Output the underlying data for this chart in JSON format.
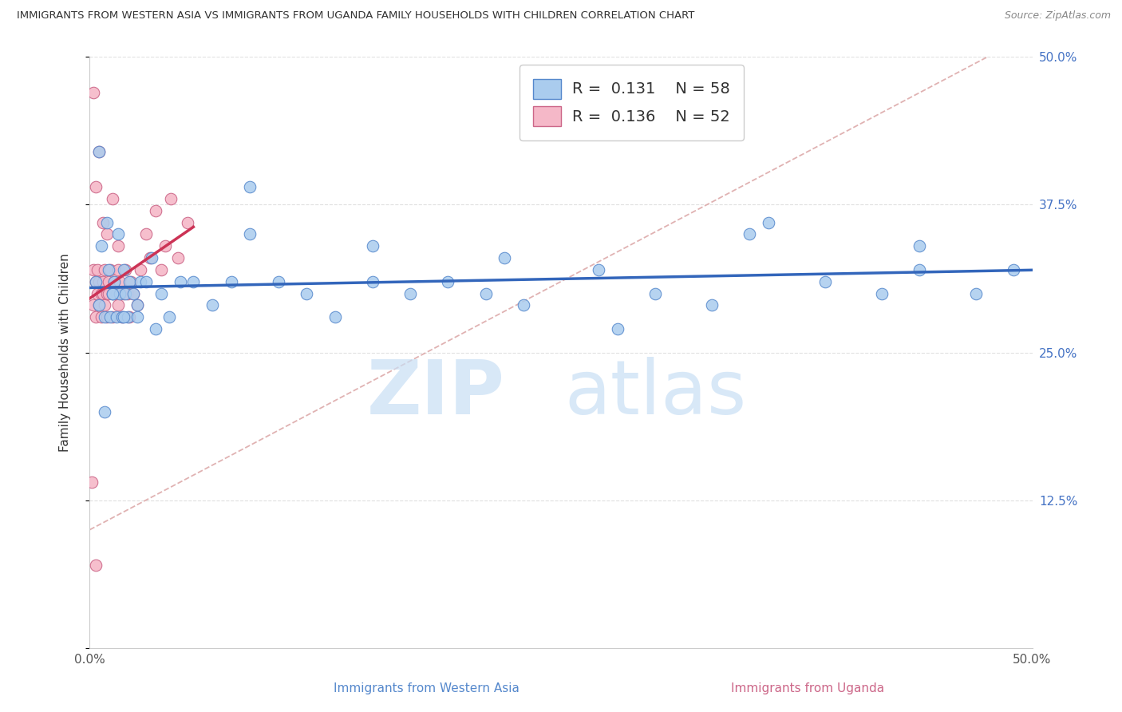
{
  "title": "IMMIGRANTS FROM WESTERN ASIA VS IMMIGRANTS FROM UGANDA FAMILY HOUSEHOLDS WITH CHILDREN CORRELATION CHART",
  "source": "Source: ZipAtlas.com",
  "xlabel_blue": "Immigrants from Western Asia",
  "xlabel_pink": "Immigrants from Uganda",
  "ylabel": "Family Households with Children",
  "legend_label1": "R =  0.131    N = 58",
  "legend_label2": "R =  0.136    N = 52",
  "blue_dot_color": "#aaccee",
  "blue_edge_color": "#5588cc",
  "pink_dot_color": "#f5b8c8",
  "pink_edge_color": "#cc6688",
  "trend_blue_color": "#3366bb",
  "trend_pink_color": "#cc3355",
  "dashed_color": "#ddaaaa",
  "watermark_color": "#c8dff5",
  "title_color": "#333333",
  "source_color": "#888888",
  "tick_color": "#4472c4",
  "xlim": [
    0.0,
    0.5
  ],
  "ylim": [
    0.0,
    0.5
  ],
  "xtick_pos": [
    0.0,
    0.1,
    0.2,
    0.3,
    0.4,
    0.5
  ],
  "xtick_labels": [
    "0.0%",
    "",
    "",
    "",
    "",
    "50.0%"
  ],
  "ytick_pos": [
    0.0,
    0.125,
    0.25,
    0.375,
    0.5
  ],
  "ytick_labels": [
    "",
    "12.5%",
    "25.0%",
    "37.5%",
    "50.0%"
  ],
  "blue_x": [
    0.003,
    0.005,
    0.006,
    0.008,
    0.009,
    0.01,
    0.011,
    0.012,
    0.013,
    0.014,
    0.015,
    0.016,
    0.017,
    0.018,
    0.019,
    0.02,
    0.021,
    0.023,
    0.025,
    0.027,
    0.03,
    0.033,
    0.038,
    0.042,
    0.048,
    0.055,
    0.065,
    0.075,
    0.085,
    0.1,
    0.115,
    0.13,
    0.15,
    0.17,
    0.19,
    0.21,
    0.23,
    0.27,
    0.3,
    0.33,
    0.36,
    0.39,
    0.42,
    0.44,
    0.47,
    0.49,
    0.005,
    0.008,
    0.012,
    0.018,
    0.025,
    0.035,
    0.22,
    0.28,
    0.085,
    0.15,
    0.35,
    0.44
  ],
  "blue_y": [
    0.31,
    0.29,
    0.34,
    0.28,
    0.36,
    0.32,
    0.28,
    0.3,
    0.31,
    0.28,
    0.35,
    0.3,
    0.28,
    0.32,
    0.3,
    0.28,
    0.31,
    0.3,
    0.28,
    0.31,
    0.31,
    0.33,
    0.3,
    0.28,
    0.31,
    0.31,
    0.29,
    0.31,
    0.35,
    0.31,
    0.3,
    0.28,
    0.31,
    0.3,
    0.31,
    0.3,
    0.29,
    0.32,
    0.3,
    0.29,
    0.36,
    0.31,
    0.3,
    0.32,
    0.3,
    0.32,
    0.42,
    0.2,
    0.3,
    0.28,
    0.29,
    0.27,
    0.33,
    0.27,
    0.39,
    0.34,
    0.35,
    0.34
  ],
  "pink_x": [
    0.001,
    0.002,
    0.002,
    0.003,
    0.003,
    0.004,
    0.004,
    0.005,
    0.005,
    0.006,
    0.006,
    0.007,
    0.007,
    0.008,
    0.008,
    0.009,
    0.009,
    0.01,
    0.01,
    0.011,
    0.012,
    0.012,
    0.013,
    0.014,
    0.015,
    0.015,
    0.016,
    0.017,
    0.018,
    0.019,
    0.02,
    0.021,
    0.022,
    0.023,
    0.025,
    0.027,
    0.03,
    0.032,
    0.035,
    0.038,
    0.04,
    0.043,
    0.047,
    0.052,
    0.003,
    0.005,
    0.007,
    0.009,
    0.012,
    0.015,
    0.002,
    0.003
  ],
  "pink_y": [
    0.14,
    0.32,
    0.29,
    0.31,
    0.28,
    0.3,
    0.32,
    0.31,
    0.29,
    0.3,
    0.28,
    0.31,
    0.3,
    0.32,
    0.29,
    0.3,
    0.28,
    0.31,
    0.3,
    0.32,
    0.3,
    0.28,
    0.31,
    0.3,
    0.32,
    0.29,
    0.31,
    0.28,
    0.3,
    0.32,
    0.3,
    0.28,
    0.31,
    0.3,
    0.29,
    0.32,
    0.35,
    0.33,
    0.37,
    0.32,
    0.34,
    0.38,
    0.33,
    0.36,
    0.39,
    0.42,
    0.36,
    0.35,
    0.38,
    0.34,
    0.47,
    0.07
  ]
}
